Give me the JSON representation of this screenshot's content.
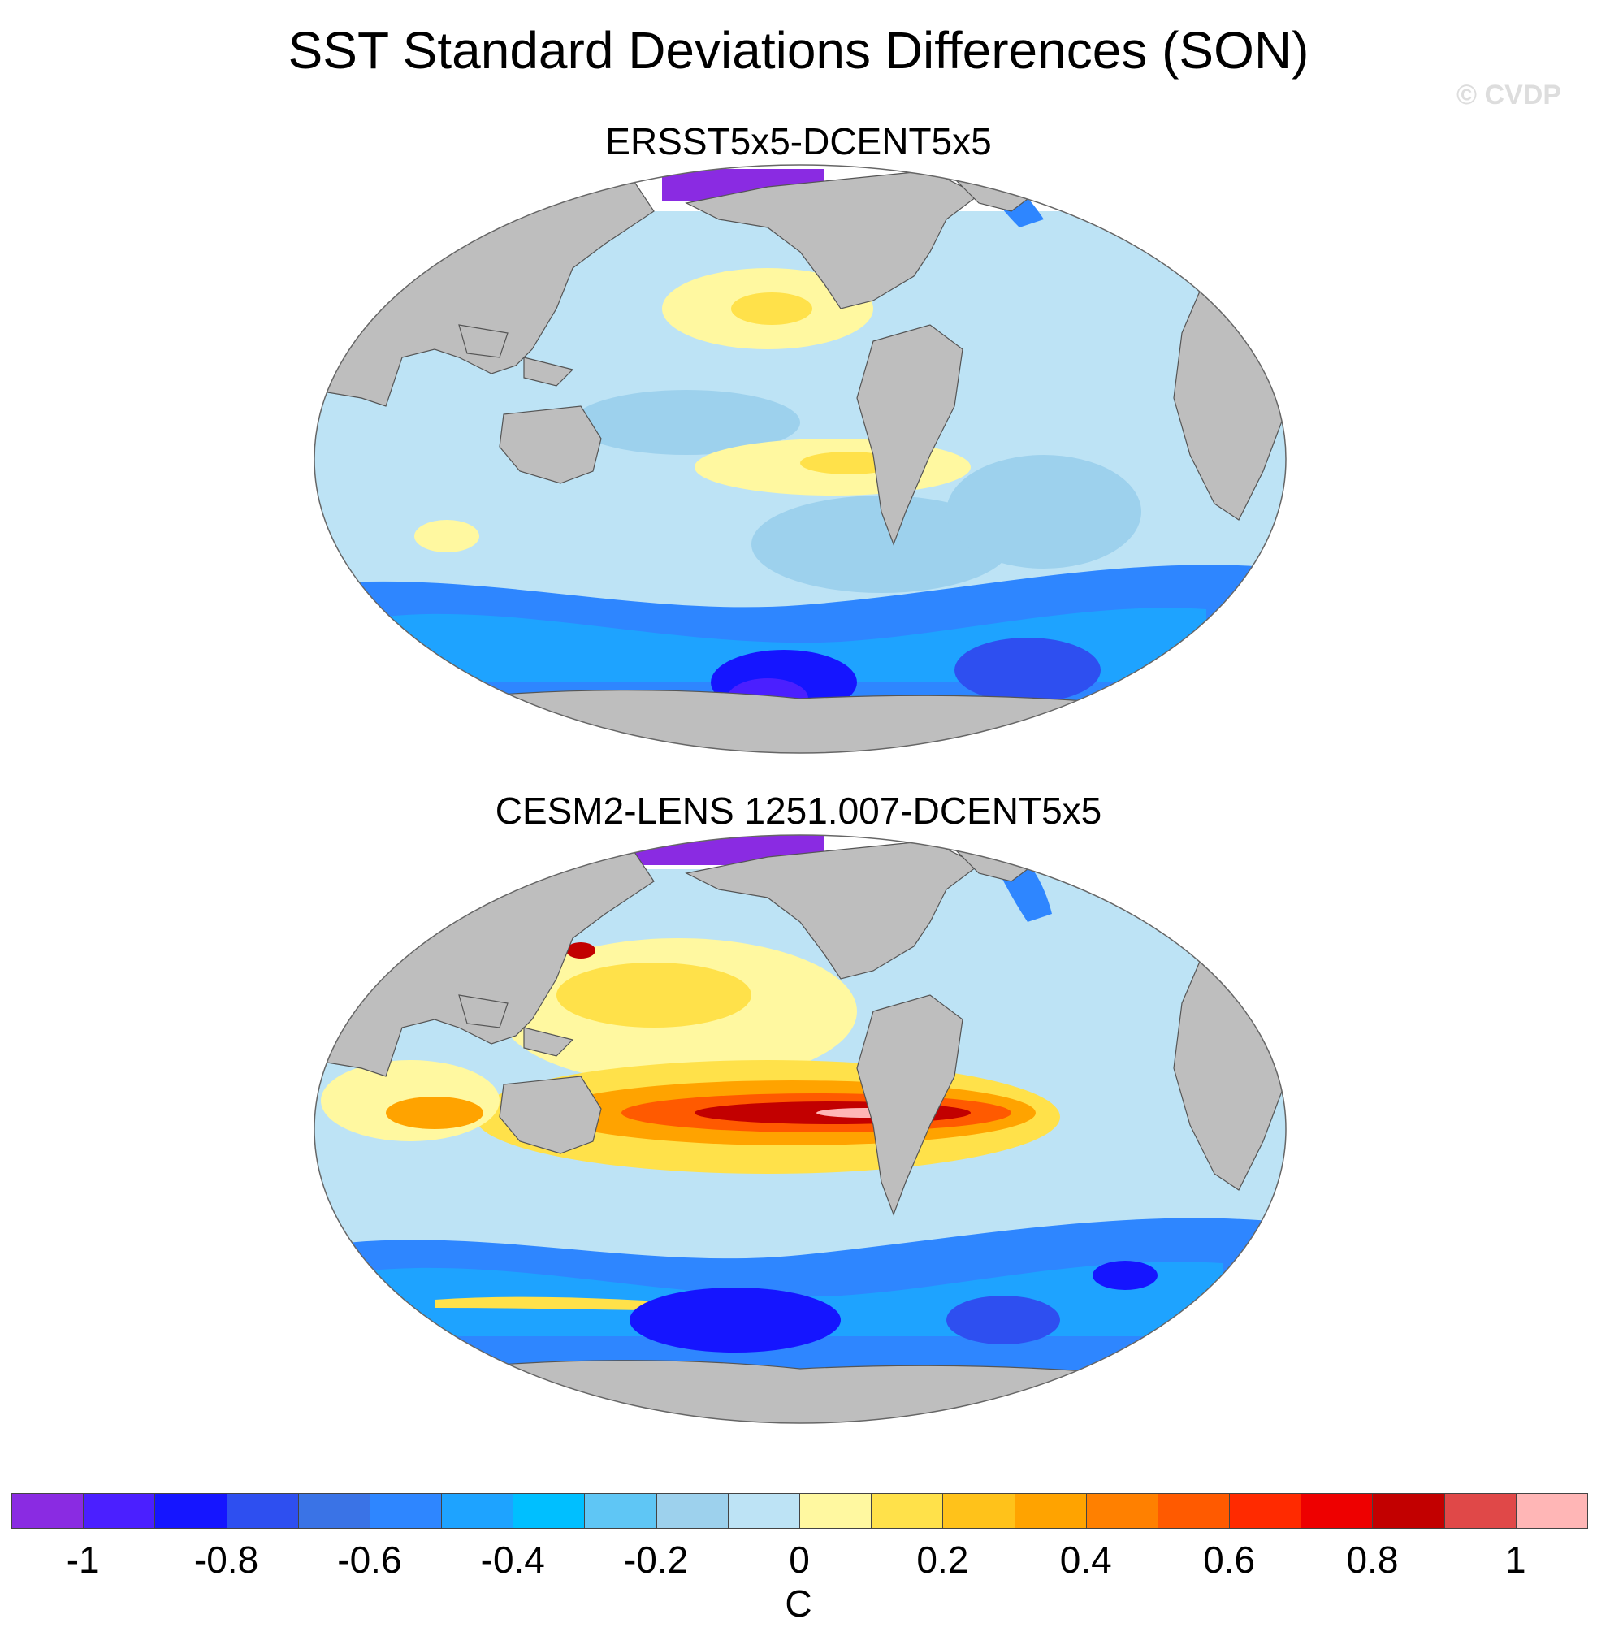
{
  "title": "SST Standard Deviations Differences (SON)",
  "watermark": "© CVDP",
  "panels": [
    {
      "title": "ERSST5x5-DCENT5x5",
      "region_name": "ersst-map"
    },
    {
      "title": "CESM2-LENS 1251.007-DCENT5x5",
      "region_name": "cesm2-map"
    }
  ],
  "colors": {
    "land": "#bebebe",
    "missing": "#ffffff",
    "bins": [
      "#8a2be2",
      "#4b1fff",
      "#1515ff",
      "#2e4ff0",
      "#3a73e6",
      "#2e86ff",
      "#1ea3ff",
      "#00bfff",
      "#5fc6f5",
      "#9dd1ed",
      "#bde3f5",
      "#fff8a0",
      "#ffe14a",
      "#ffc21a",
      "#ffa300",
      "#ff8000",
      "#ff5a00",
      "#ff2a00",
      "#ee0000",
      "#c20000",
      "#e04848",
      "#ffb6b6"
    ]
  },
  "colorbar": {
    "units": "C",
    "labels": [
      "-1",
      "-0.8",
      "-0.6",
      "-0.4",
      "-0.2",
      "0",
      "0.2",
      "0.4",
      "0.6",
      "0.8",
      "1"
    ]
  }
}
